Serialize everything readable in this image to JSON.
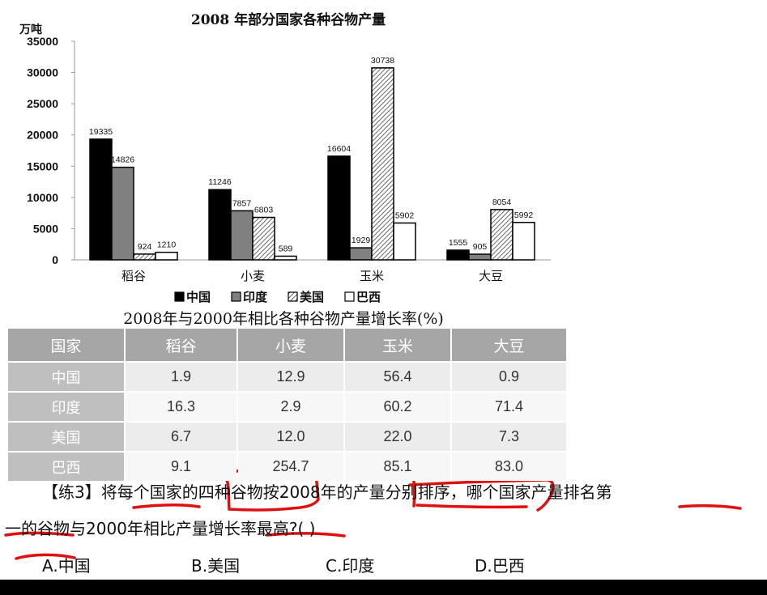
{
  "chart_data": {
    "type": "bar",
    "title": "2008 年部分国家各种谷物产量",
    "ylabel": "万吨",
    "ylim": [
      0,
      35000
    ],
    "yticks": [
      0,
      5000,
      10000,
      15000,
      20000,
      25000,
      30000,
      35000
    ],
    "categories": [
      "稻谷",
      "小麦",
      "玉米",
      "大豆"
    ],
    "series": [
      {
        "name": "中国",
        "values": [
          19335,
          11246,
          16604,
          1555
        ],
        "fill": "#000000"
      },
      {
        "name": "印度",
        "values": [
          14826,
          7857,
          1929,
          905
        ],
        "fill": "#808080"
      },
      {
        "name": "美国",
        "values": [
          924,
          6803,
          30738,
          8054
        ],
        "fill": "hatch"
      },
      {
        "name": "巴西",
        "values": [
          1210,
          589,
          5902,
          5992
        ],
        "fill": "#ffffff"
      }
    ],
    "legend_position": "bottom",
    "grid": false
  },
  "table": {
    "caption": "2008年与2000年相比各种谷物产量增长率(%)",
    "headers": [
      "国家",
      "稻谷",
      "小麦",
      "玉米",
      "大豆"
    ],
    "rows": [
      {
        "country": "中国",
        "values": [
          "1.9",
          "12.9",
          "56.4",
          "0.9"
        ]
      },
      {
        "country": "印度",
        "values": [
          "16.3",
          "2.9",
          "60.2",
          "71.4"
        ]
      },
      {
        "country": "美国",
        "values": [
          "6.7",
          "12.0",
          "22.0",
          "7.3"
        ]
      },
      {
        "country": "巴西",
        "values": [
          "9.1",
          "254.7",
          "85.1",
          "83.0"
        ]
      }
    ]
  },
  "question": {
    "line1": "【练3】将每个国家的四种谷物按2008年的产量分别排序，哪个国家产量排名第",
    "line2": "一的谷物与2000年相比产量增长率最高?(    )",
    "options": [
      "A.中国",
      "B.美国",
      "C.印度",
      "D.巴西"
    ]
  },
  "colors": {
    "annotation": "#e01010",
    "table_header": "#a6a6a6"
  }
}
